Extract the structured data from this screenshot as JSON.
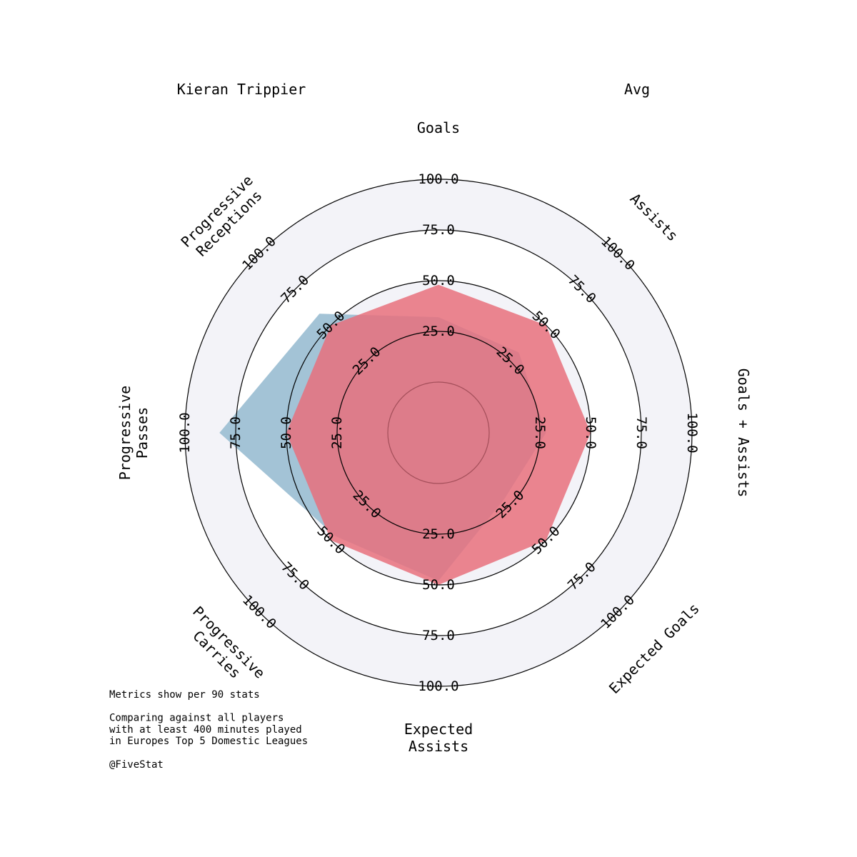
{
  "chart_data": {
    "type": "radar",
    "params": [
      {
        "label": [
          "Goals"
        ],
        "min": 0,
        "max": 100
      },
      {
        "label": [
          "Assists"
        ],
        "min": 0,
        "max": 100
      },
      {
        "label": [
          "Goals + Assists"
        ],
        "min": 0,
        "max": 100
      },
      {
        "label": [
          "Expected Goals"
        ],
        "min": 0,
        "max": 100
      },
      {
        "label": [
          "Expected",
          "Assists"
        ],
        "min": 0,
        "max": 100
      },
      {
        "label": [
          "Progressive",
          "Carries"
        ],
        "min": 0,
        "max": 100
      },
      {
        "label": [
          "Progressive",
          "Passes"
        ],
        "min": 0,
        "max": 100
      },
      {
        "label": [
          "Progressive",
          "Receptions"
        ],
        "min": 0,
        "max": 100
      }
    ],
    "ticks": [
      "25.0",
      "50.0",
      "75.0",
      "100.0"
    ],
    "series": [
      {
        "name": "Kieran Trippier",
        "color": "#6a9fc0",
        "fill": "#a3c3d6",
        "values": [
          32,
          31,
          28,
          21,
          48,
          47,
          83,
          58
        ]
      },
      {
        "name": "Avg",
        "color": "#d93a4a",
        "fill": "#e8707d",
        "values": [
          48,
          50,
          50,
          50,
          50,
          50,
          50,
          50
        ]
      }
    ]
  },
  "footnote": [
    "Metrics show per 90 stats",
    "",
    "Comparing against all players",
    "with at least 400 minutes played",
    "in Europes Top 5 Domestic Leagues",
    "",
    "@FiveStat"
  ]
}
